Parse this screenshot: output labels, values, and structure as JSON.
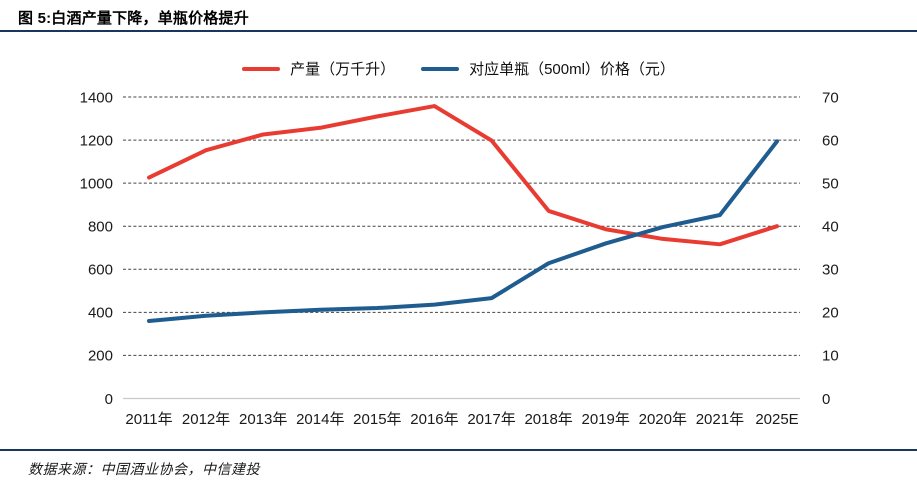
{
  "header": {
    "title": "图 5:白酒产量下降，单瓶价格提升"
  },
  "footer": {
    "source": "数据来源：中国酒业协会，中信建投"
  },
  "colors": {
    "production_line": "#e83c32",
    "price_line": "#1f5c8f",
    "rule": "#17375e",
    "gridline": "#444444",
    "baseline": "#c9c9c9",
    "tick_text": "#1a1a1a"
  },
  "chart_data": {
    "type": "line",
    "categories": [
      "2011年",
      "2012年",
      "2013年",
      "2014年",
      "2015年",
      "2016年",
      "2017年",
      "2018年",
      "2019年",
      "2020年",
      "2021年",
      "2025E"
    ],
    "series": [
      {
        "name": "产量（万千升）",
        "axis": "left",
        "color_key": "production_line",
        "values": [
          1026,
          1153,
          1226,
          1257,
          1310,
          1358,
          1198,
          871,
          786,
          741,
          716,
          800
        ]
      },
      {
        "name": "对应单瓶（500ml）价格（元）",
        "axis": "right",
        "color_key": "price_line",
        "values": [
          18,
          19.2,
          20,
          20.6,
          21,
          21.8,
          23.3,
          31.4,
          36,
          39.8,
          42.6,
          59.7
        ]
      }
    ],
    "left_axis": {
      "min": 0,
      "max": 1400,
      "step": 200,
      "ticks": [
        0,
        200,
        400,
        600,
        800,
        1000,
        1200,
        1400
      ]
    },
    "right_axis": {
      "min": 0,
      "max": 70,
      "step": 10,
      "ticks": [
        0,
        10,
        20,
        30,
        40,
        50,
        60,
        70
      ]
    },
    "grid": "horizontal-dashed",
    "legend_position": "top-center",
    "title": "图 5:白酒产量下降，单瓶价格提升"
  }
}
